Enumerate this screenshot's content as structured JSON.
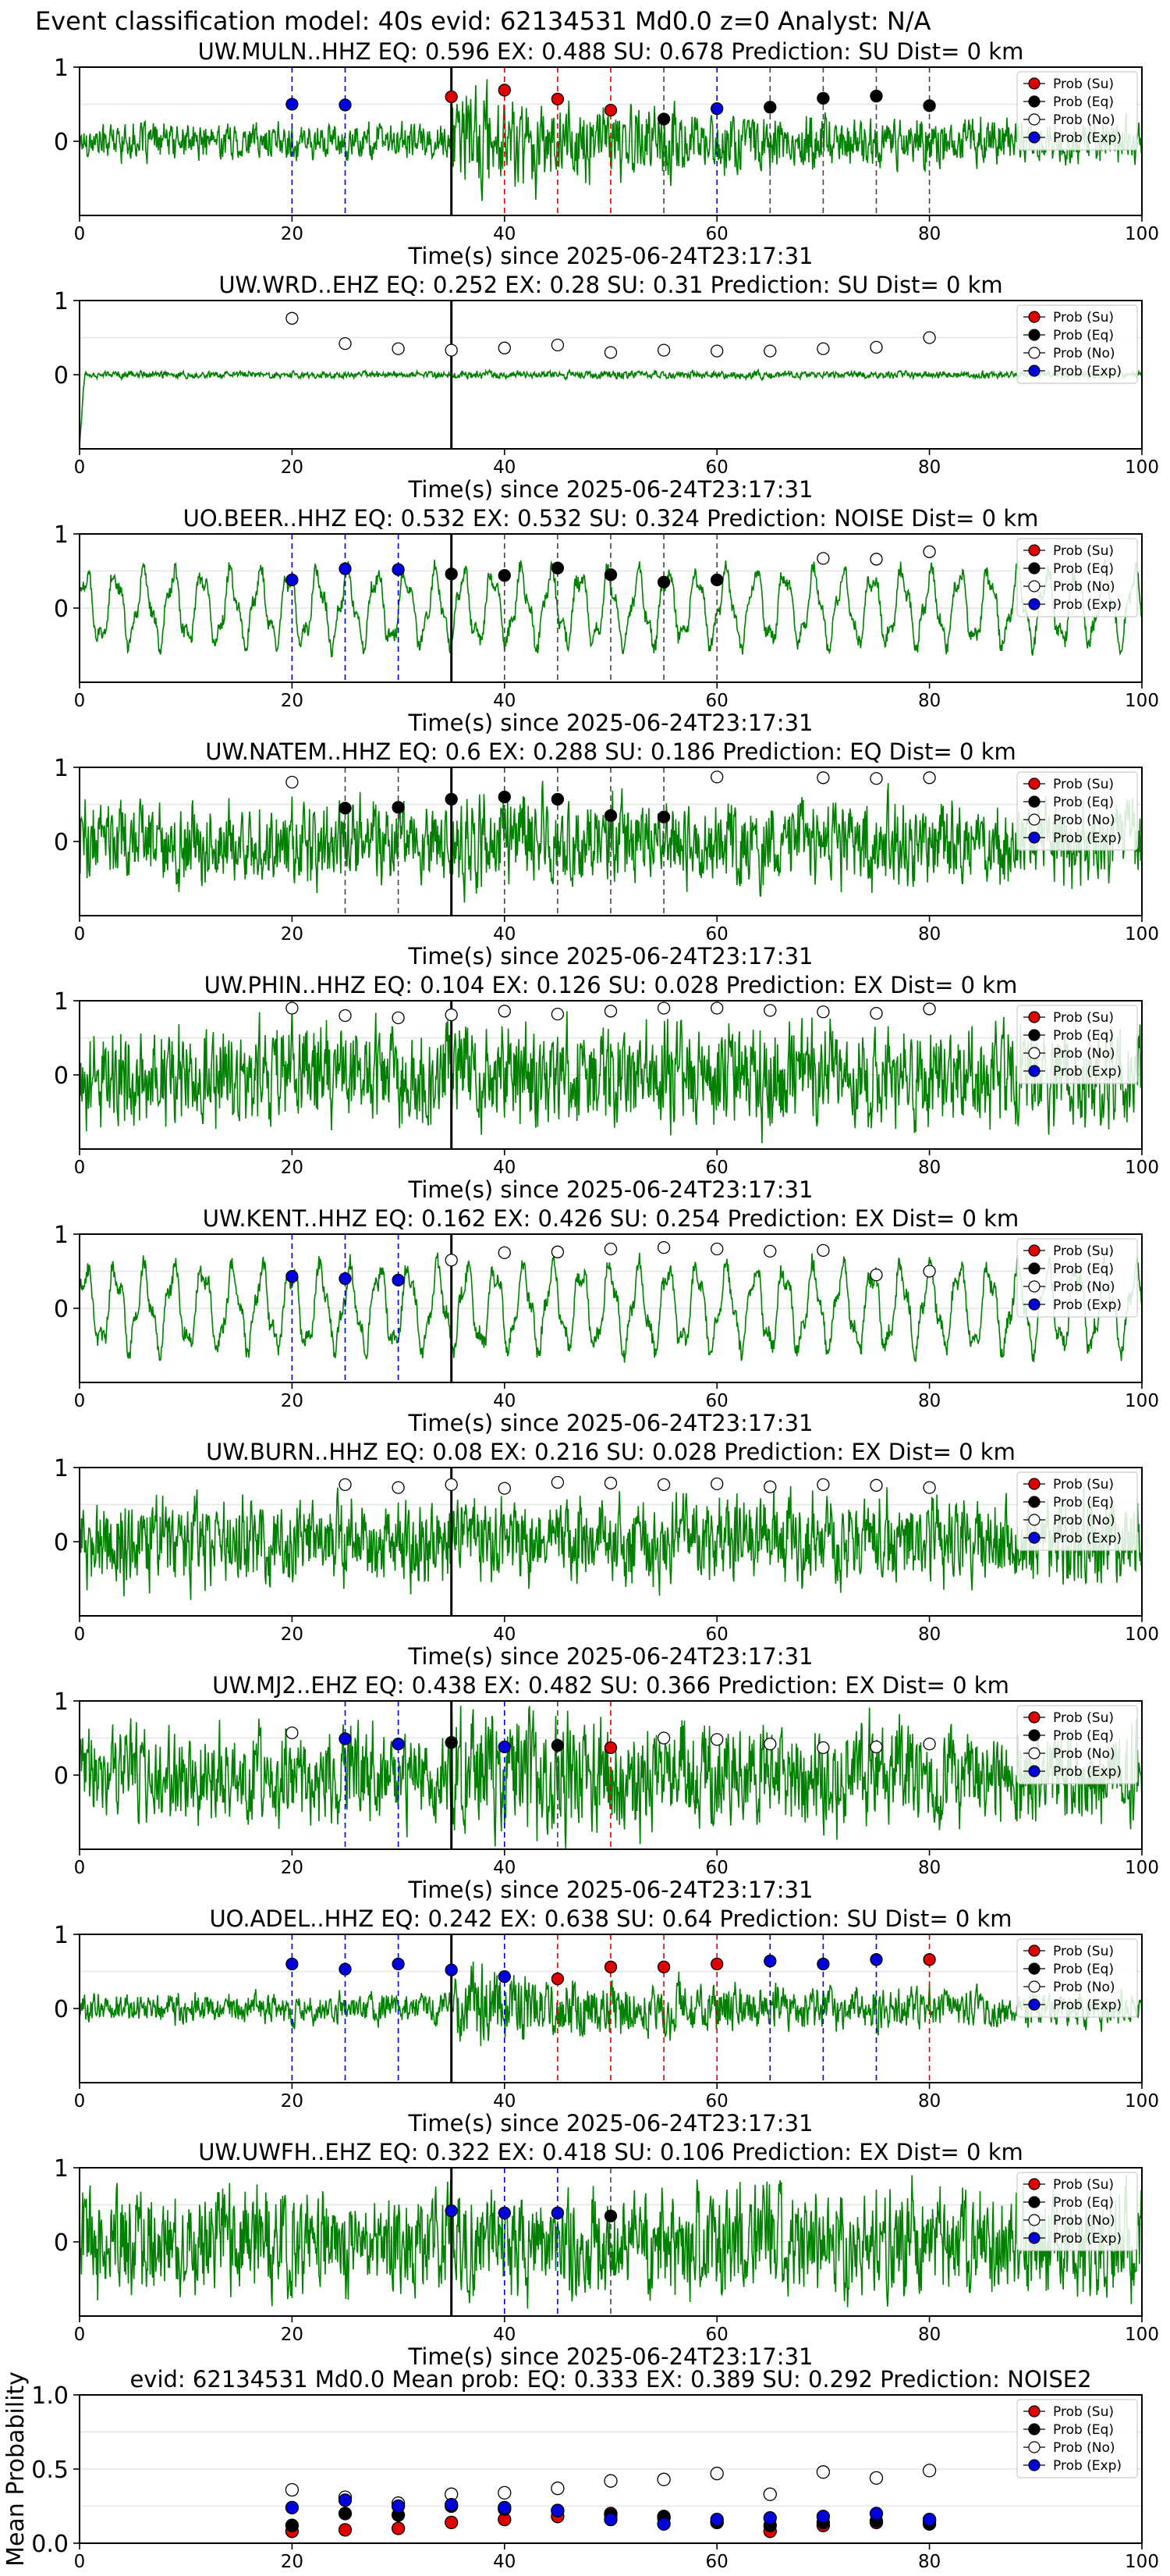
{
  "figure_title": "Event classification model: 40s evid: 62134531 Md0.0 z=0 Analyst: N/A",
  "legend_labels": [
    "Prob (Su)",
    "Prob (Eq)",
    "Prob (No)",
    "Prob (Exp)"
  ],
  "colors": {
    "su": "#e00000",
    "eq": "#000000",
    "no": "#ffffff",
    "exp": "#0000dd",
    "waveform": "#008000",
    "pick": "#000000"
  },
  "chart_data": [
    {
      "type": "line",
      "title": "UW.MULN..HHZ   EQ: 0.596  EX: 0.488  SU: 0.678   Prediction: SU    Dist= 0 km",
      "xlabel": "Time(s) since 2025-06-24T23:17:31",
      "ylabel": "",
      "xlim": [
        0,
        100
      ],
      "ylim": [
        -1,
        1
      ],
      "xticks": [
        0,
        20,
        40,
        60,
        80,
        100
      ],
      "yticks": [
        0,
        1
      ],
      "grid": "horizontal",
      "legend": "top-right",
      "pick_time": 35,
      "waveform": {
        "amp": 0.18,
        "type": "noise",
        "arrival": 35,
        "arrival_gain": 3.2
      },
      "points": [
        [
          20,
          0.5,
          "exp"
        ],
        [
          25,
          0.49,
          "exp"
        ],
        [
          35,
          0.6,
          "su"
        ],
        [
          40,
          0.69,
          "su"
        ],
        [
          45,
          0.57,
          "su"
        ],
        [
          50,
          0.42,
          "su"
        ],
        [
          55,
          0.3,
          "eq"
        ],
        [
          60,
          0.44,
          "exp"
        ],
        [
          65,
          0.46,
          "eq"
        ],
        [
          70,
          0.58,
          "eq"
        ],
        [
          75,
          0.61,
          "eq"
        ],
        [
          80,
          0.48,
          "eq"
        ]
      ]
    },
    {
      "type": "line",
      "title": "UW.WRD..EHZ   EQ: 0.252  EX: 0.28  SU: 0.31   Prediction: SU    Dist= 0 km",
      "xlabel": "Time(s) since 2025-06-24T23:17:31",
      "ylabel": "",
      "xlim": [
        0,
        100
      ],
      "ylim": [
        -1,
        1
      ],
      "xticks": [
        0,
        20,
        40,
        60,
        80,
        100
      ],
      "yticks": [
        0,
        1
      ],
      "grid": "horizontal",
      "legend": "top-right",
      "pick_time": 35,
      "waveform": {
        "amp": 0.035,
        "type": "noise",
        "arrival": 35,
        "arrival_gain": 1.3
      },
      "points": [
        [
          20,
          0.76,
          "no"
        ],
        [
          25,
          0.42,
          "no"
        ],
        [
          30,
          0.35,
          "no"
        ],
        [
          35,
          0.33,
          "no"
        ],
        [
          40,
          0.36,
          "no"
        ],
        [
          45,
          0.4,
          "no"
        ],
        [
          50,
          0.3,
          "no"
        ],
        [
          55,
          0.33,
          "no"
        ],
        [
          60,
          0.32,
          "no"
        ],
        [
          65,
          0.32,
          "no"
        ],
        [
          70,
          0.35,
          "no"
        ],
        [
          75,
          0.37,
          "no"
        ],
        [
          80,
          0.5,
          "no"
        ]
      ]
    },
    {
      "type": "line",
      "title": "UO.BEER..HHZ   EQ: 0.532  EX: 0.532  SU: 0.324   Prediction: NOISE    Dist= 0 km",
      "xlabel": "Time(s) since 2025-06-24T23:17:31",
      "ylabel": "",
      "xlim": [
        0,
        100
      ],
      "ylim": [
        -1,
        1
      ],
      "xticks": [
        0,
        20,
        40,
        60,
        80,
        100
      ],
      "yticks": [
        0,
        1
      ],
      "grid": "horizontal",
      "legend": "top-right",
      "pick_time": 35,
      "waveform": {
        "amp": 0.55,
        "type": "oscillation",
        "arrival": 35,
        "arrival_gain": 1.0
      },
      "points": [
        [
          20,
          0.38,
          "exp"
        ],
        [
          25,
          0.53,
          "exp"
        ],
        [
          30,
          0.52,
          "exp"
        ],
        [
          35,
          0.46,
          "eq"
        ],
        [
          40,
          0.44,
          "eq"
        ],
        [
          45,
          0.54,
          "eq"
        ],
        [
          50,
          0.45,
          "eq"
        ],
        [
          55,
          0.35,
          "eq"
        ],
        [
          60,
          0.38,
          "eq"
        ],
        [
          70,
          0.67,
          "no"
        ],
        [
          75,
          0.66,
          "no"
        ],
        [
          80,
          0.76,
          "no"
        ]
      ]
    },
    {
      "type": "line",
      "title": "UW.NATEM..HHZ   EQ: 0.6  EX: 0.288  SU: 0.186   Prediction: EQ    Dist= 0 km",
      "xlabel": "Time(s) since 2025-06-24T23:17:31",
      "ylabel": "",
      "xlim": [
        0,
        100
      ],
      "ylim": [
        -1,
        1
      ],
      "xticks": [
        0,
        20,
        40,
        60,
        80,
        100
      ],
      "yticks": [
        0,
        1
      ],
      "grid": "horizontal",
      "legend": "top-right",
      "pick_time": 35,
      "waveform": {
        "amp": 0.4,
        "type": "noise",
        "arrival": 35,
        "arrival_gain": 1.2
      },
      "points": [
        [
          20,
          0.8,
          "no"
        ],
        [
          25,
          0.45,
          "eq"
        ],
        [
          30,
          0.46,
          "eq"
        ],
        [
          35,
          0.57,
          "eq"
        ],
        [
          40,
          0.6,
          "eq"
        ],
        [
          45,
          0.57,
          "eq"
        ],
        [
          50,
          0.35,
          "eq"
        ],
        [
          55,
          0.33,
          "eq"
        ],
        [
          60,
          0.87,
          "no"
        ],
        [
          70,
          0.86,
          "no"
        ],
        [
          75,
          0.85,
          "no"
        ],
        [
          80,
          0.86,
          "no"
        ]
      ]
    },
    {
      "type": "line",
      "title": "UW.PHIN..HHZ   EQ: 0.104  EX: 0.126  SU: 0.028   Prediction: EX    Dist= 0 km",
      "xlabel": "Time(s) since 2025-06-24T23:17:31",
      "ylabel": "",
      "xlim": [
        0,
        100
      ],
      "ylim": [
        -1,
        1
      ],
      "xticks": [
        0,
        20,
        40,
        60,
        80,
        100
      ],
      "yticks": [
        0,
        1
      ],
      "grid": "horizontal",
      "legend": "top-right",
      "pick_time": 35,
      "waveform": {
        "amp": 0.5,
        "type": "noise",
        "arrival": 35,
        "arrival_gain": 1.0
      },
      "points": [
        [
          20,
          0.9,
          "no"
        ],
        [
          25,
          0.8,
          "no"
        ],
        [
          30,
          0.77,
          "no"
        ],
        [
          35,
          0.81,
          "no"
        ],
        [
          40,
          0.86,
          "no"
        ],
        [
          45,
          0.82,
          "no"
        ],
        [
          50,
          0.86,
          "no"
        ],
        [
          55,
          0.9,
          "no"
        ],
        [
          60,
          0.9,
          "no"
        ],
        [
          65,
          0.87,
          "no"
        ],
        [
          70,
          0.85,
          "no"
        ],
        [
          75,
          0.83,
          "no"
        ],
        [
          80,
          0.89,
          "no"
        ]
      ]
    },
    {
      "type": "line",
      "title": "UW.KENT..HHZ   EQ: 0.162  EX: 0.426  SU: 0.254   Prediction: EX    Dist= 0 km",
      "xlabel": "Time(s) since 2025-06-24T23:17:31",
      "ylabel": "",
      "xlim": [
        0,
        100
      ],
      "ylim": [
        -1,
        1
      ],
      "xticks": [
        0,
        20,
        40,
        60,
        80,
        100
      ],
      "yticks": [
        0,
        1
      ],
      "grid": "horizontal",
      "legend": "top-right",
      "pick_time": 35,
      "waveform": {
        "amp": 0.62,
        "type": "oscillation",
        "arrival": 35,
        "arrival_gain": 1.0
      },
      "points": [
        [
          20,
          0.43,
          "exp"
        ],
        [
          25,
          0.4,
          "exp"
        ],
        [
          30,
          0.38,
          "exp"
        ],
        [
          35,
          0.65,
          "no"
        ],
        [
          40,
          0.75,
          "no"
        ],
        [
          45,
          0.76,
          "no"
        ],
        [
          50,
          0.8,
          "no"
        ],
        [
          55,
          0.82,
          "no"
        ],
        [
          60,
          0.8,
          "no"
        ],
        [
          65,
          0.77,
          "no"
        ],
        [
          70,
          0.78,
          "no"
        ],
        [
          75,
          0.45,
          "no"
        ],
        [
          80,
          0.5,
          "no"
        ]
      ]
    },
    {
      "type": "line",
      "title": "UW.BURN..HHZ   EQ: 0.08  EX: 0.216  SU: 0.028   Prediction: EX    Dist= 0 km",
      "xlabel": "Time(s) since 2025-06-24T23:17:31",
      "ylabel": "",
      "xlim": [
        0,
        100
      ],
      "ylim": [
        -1,
        1
      ],
      "xticks": [
        0,
        20,
        40,
        60,
        80,
        100
      ],
      "yticks": [
        0,
        1
      ],
      "grid": "horizontal",
      "legend": "top-right",
      "pick_time": 35,
      "waveform": {
        "amp": 0.42,
        "type": "noise",
        "arrival": 35,
        "arrival_gain": 1.0
      },
      "points": [
        [
          25,
          0.77,
          "no"
        ],
        [
          30,
          0.73,
          "no"
        ],
        [
          35,
          0.77,
          "no"
        ],
        [
          40,
          0.72,
          "no"
        ],
        [
          45,
          0.8,
          "no"
        ],
        [
          50,
          0.79,
          "no"
        ],
        [
          55,
          0.77,
          "no"
        ],
        [
          60,
          0.78,
          "no"
        ],
        [
          65,
          0.74,
          "no"
        ],
        [
          70,
          0.77,
          "no"
        ],
        [
          75,
          0.76,
          "no"
        ],
        [
          80,
          0.73,
          "no"
        ]
      ]
    },
    {
      "type": "line",
      "title": "UW.MJ2..EHZ   EQ: 0.438  EX: 0.482  SU: 0.366   Prediction: EX    Dist= 0 km",
      "xlabel": "Time(s) since 2025-06-24T23:17:31",
      "ylabel": "",
      "xlim": [
        0,
        100
      ],
      "ylim": [
        -1,
        1
      ],
      "xticks": [
        0,
        20,
        40,
        60,
        80,
        100
      ],
      "yticks": [
        0,
        1
      ],
      "grid": "horizontal",
      "legend": "top-right",
      "pick_time": 35,
      "waveform": {
        "amp": 0.45,
        "type": "noise",
        "arrival": 35,
        "arrival_gain": 1.5
      },
      "points": [
        [
          20,
          0.57,
          "no"
        ],
        [
          25,
          0.49,
          "exp"
        ],
        [
          30,
          0.42,
          "exp"
        ],
        [
          35,
          0.44,
          "eq"
        ],
        [
          40,
          0.38,
          "exp"
        ],
        [
          45,
          0.4,
          "eq"
        ],
        [
          50,
          0.37,
          "su"
        ],
        [
          55,
          0.5,
          "no"
        ],
        [
          60,
          0.48,
          "no"
        ],
        [
          65,
          0.42,
          "no"
        ],
        [
          70,
          0.37,
          "no"
        ],
        [
          75,
          0.38,
          "no"
        ],
        [
          80,
          0.42,
          "no"
        ]
      ]
    },
    {
      "type": "line",
      "title": "UO.ADEL..HHZ   EQ: 0.242  EX: 0.638  SU: 0.64   Prediction: SU    Dist= 0 km",
      "xlabel": "Time(s) since 2025-06-24T23:17:31",
      "ylabel": "",
      "xlim": [
        0,
        100
      ],
      "ylim": [
        -1,
        1
      ],
      "xticks": [
        0,
        20,
        40,
        60,
        80,
        100
      ],
      "yticks": [
        0,
        1
      ],
      "grid": "horizontal",
      "legend": "top-right",
      "pick_time": 35,
      "waveform": {
        "amp": 0.15,
        "type": "noise",
        "arrival": 35,
        "arrival_gain": 2.8
      },
      "points": [
        [
          20,
          0.6,
          "exp"
        ],
        [
          25,
          0.53,
          "exp"
        ],
        [
          30,
          0.6,
          "exp"
        ],
        [
          35,
          0.52,
          "exp"
        ],
        [
          40,
          0.43,
          "exp"
        ],
        [
          45,
          0.4,
          "su"
        ],
        [
          50,
          0.56,
          "su"
        ],
        [
          55,
          0.56,
          "su"
        ],
        [
          60,
          0.6,
          "su"
        ],
        [
          65,
          0.64,
          "exp"
        ],
        [
          70,
          0.6,
          "exp"
        ],
        [
          75,
          0.66,
          "exp"
        ],
        [
          80,
          0.66,
          "su"
        ]
      ]
    },
    {
      "type": "line",
      "title": "UW.UWFH..EHZ   EQ: 0.322  EX: 0.418  SU: 0.106   Prediction: EX    Dist= 0 km",
      "xlabel": "Time(s) since 2025-06-24T23:17:31",
      "ylabel": "",
      "xlim": [
        0,
        100
      ],
      "ylim": [
        -1,
        1
      ],
      "xticks": [
        0,
        20,
        40,
        60,
        80,
        100
      ],
      "yticks": [
        0,
        1
      ],
      "grid": "horizontal",
      "legend": "top-right",
      "pick_time": 35,
      "waveform": {
        "amp": 0.52,
        "type": "noise",
        "arrival": 35,
        "arrival_gain": 1.0
      },
      "points": [
        [
          35,
          0.42,
          "exp"
        ],
        [
          40,
          0.39,
          "exp"
        ],
        [
          45,
          0.39,
          "exp"
        ],
        [
          50,
          0.35,
          "eq"
        ]
      ]
    },
    {
      "type": "scatter",
      "title": "evid: 62134531  Md0.0   Mean prob:   EQ: 0.333  EX: 0.389  SU: 0.292   Prediction: NOISE2",
      "xlabel": "",
      "ylabel": "Mean Probability",
      "xlim": [
        0,
        100
      ],
      "ylim": [
        0,
        1
      ],
      "xticks": [
        0,
        20,
        40,
        60,
        80,
        100
      ],
      "yticks": [
        0.0,
        0.5,
        1.0
      ],
      "grid": "horizontal",
      "legend": "top-right",
      "series": [
        {
          "name": "Prob (Su)",
          "key": "su",
          "x": [
            20,
            25,
            30,
            35,
            40,
            45,
            50,
            55,
            60,
            65,
            70,
            75,
            80
          ],
          "values": [
            0.08,
            0.09,
            0.1,
            0.14,
            0.16,
            0.18,
            0.2,
            0.17,
            0.14,
            0.08,
            0.12,
            0.14,
            0.15
          ]
        },
        {
          "name": "Prob (Eq)",
          "key": "eq",
          "x": [
            20,
            25,
            30,
            35,
            40,
            45,
            50,
            55,
            60,
            65,
            70,
            75,
            80
          ],
          "values": [
            0.12,
            0.2,
            0.19,
            0.25,
            0.23,
            0.22,
            0.19,
            0.18,
            0.14,
            0.12,
            0.14,
            0.15,
            0.13
          ]
        },
        {
          "name": "Prob (No)",
          "key": "no",
          "x": [
            20,
            25,
            30,
            35,
            40,
            45,
            50,
            55,
            60,
            65,
            70,
            75,
            80
          ],
          "values": [
            0.36,
            0.31,
            0.27,
            0.33,
            0.34,
            0.37,
            0.42,
            0.43,
            0.47,
            0.33,
            0.48,
            0.44,
            0.49
          ]
        },
        {
          "name": "Prob (Exp)",
          "key": "exp",
          "x": [
            20,
            25,
            30,
            35,
            40,
            45,
            50,
            55,
            60,
            65,
            70,
            75,
            80
          ],
          "values": [
            0.24,
            0.29,
            0.25,
            0.26,
            0.24,
            0.22,
            0.16,
            0.13,
            0.16,
            0.17,
            0.18,
            0.2,
            0.16
          ]
        }
      ]
    }
  ]
}
